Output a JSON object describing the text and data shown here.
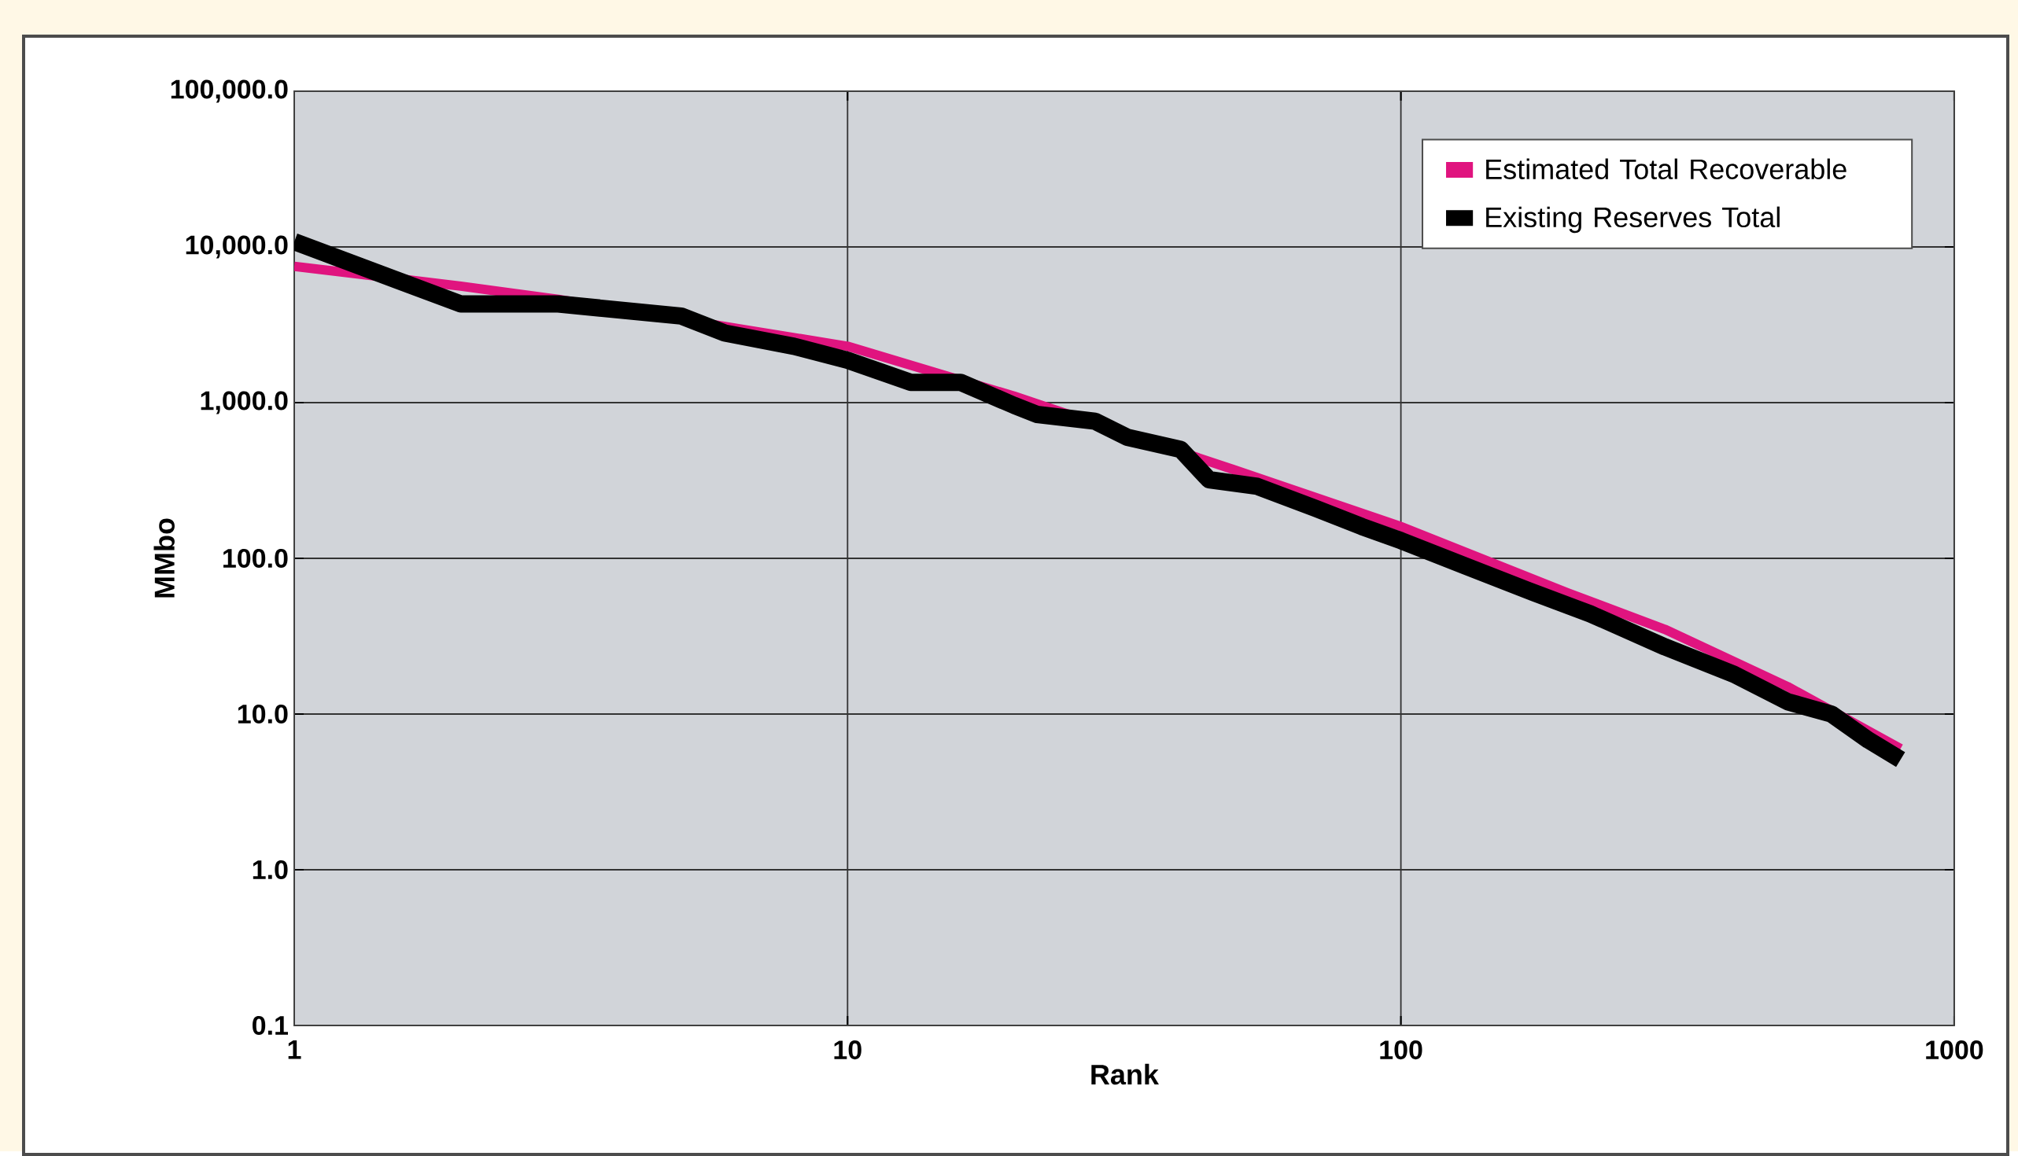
{
  "chart_data": {
    "type": "line",
    "xlabel": "Rank",
    "ylabel": "MMbo",
    "log": "xy",
    "xlim": [
      1,
      1000
    ],
    "ylim": [
      0.1,
      100000
    ],
    "xticks": [
      1,
      10,
      100,
      1000
    ],
    "yticks": [
      {
        "value": 0.1,
        "label": "0.1"
      },
      {
        "value": 1,
        "label": "1.0"
      },
      {
        "value": 10,
        "label": "10.0"
      },
      {
        "value": 100,
        "label": "100.0"
      },
      {
        "value": 1000,
        "label": "1,000.0"
      },
      {
        "value": 10000,
        "label": "10,000.0"
      },
      {
        "value": 100000,
        "label": "100,000.0"
      }
    ],
    "grid": true,
    "legend": "top right",
    "line_style": "solid",
    "series": [
      {
        "name": "Estimated Total Recoverable",
        "color": "#e0147f",
        "x": [
          1,
          2,
          3,
          10,
          20,
          50,
          100,
          200,
          300,
          500,
          800
        ],
        "values": [
          7500,
          5600,
          4600,
          2300,
          1100,
          370,
          160,
          60,
          35,
          15,
          6
        ]
      },
      {
        "name": "Existing Reserves Total",
        "color": "#000000",
        "x": [
          1,
          2,
          3,
          5,
          6,
          8,
          10,
          13,
          16,
          20,
          22,
          28,
          32,
          40,
          45,
          55,
          70,
          85,
          100,
          130,
          170,
          220,
          300,
          400,
          500,
          600,
          700,
          800
        ],
        "values": [
          10800,
          4300,
          4300,
          3600,
          2800,
          2300,
          1870,
          1350,
          1350,
          960,
          840,
          760,
          600,
          500,
          320,
          290,
          210,
          160,
          130,
          90,
          62,
          44,
          27,
          18,
          12,
          10,
          6.8,
          5.1
        ]
      }
    ]
  }
}
